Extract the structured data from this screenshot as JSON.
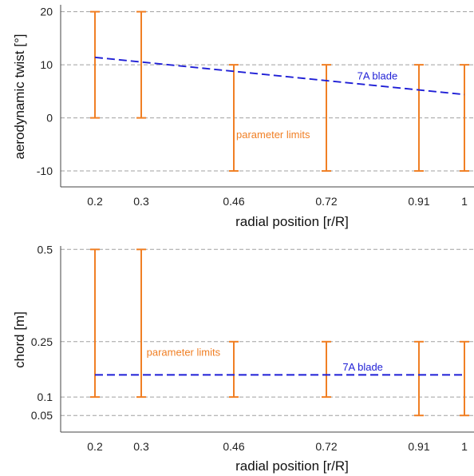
{
  "colors": {
    "limits": "#f07f24",
    "blade": "#1f1fd6",
    "grid": "#a0a0a0",
    "axis": "#444444"
  },
  "chart_data": [
    {
      "type": "errorbar+line",
      "name": "twist",
      "xlabel": "radial position [r/R]",
      "ylabel": "aerodynamic twist [°]",
      "xticks": [
        0.2,
        0.3,
        0.46,
        0.72,
        0.91,
        1
      ],
      "xtick_labels": [
        "0.2",
        "0.3",
        "0.46",
        "0.72",
        "0.91",
        "1"
      ],
      "yticks": [
        -10,
        0,
        10,
        20
      ],
      "ytick_labels": [
        "-10",
        "0",
        "10",
        "20"
      ],
      "ylim": [
        -13,
        21
      ],
      "grid": "horizontal-dashed",
      "limits_label": "parameter limits",
      "limits_label_at": {
        "x": 0.46,
        "y": -3.8
      },
      "limits": [
        {
          "x": 0.2,
          "low": 0,
          "high": 20
        },
        {
          "x": 0.3,
          "low": 0,
          "high": 20
        },
        {
          "x": 0.46,
          "low": -10,
          "high": 10
        },
        {
          "x": 0.72,
          "low": -10,
          "high": 10
        },
        {
          "x": 0.91,
          "low": -10,
          "high": 10
        },
        {
          "x": 1,
          "low": -10,
          "high": 10
        }
      ],
      "series": [
        {
          "name": "7A blade",
          "x": [
            0.2,
            1
          ],
          "y": [
            11.4,
            4.4
          ]
        }
      ],
      "series_label_at": {
        "x": 0.78,
        "y": 7.2
      }
    },
    {
      "type": "errorbar+line",
      "name": "chord",
      "xlabel": "radial position [r/R]",
      "ylabel": "chord [m]",
      "xticks": [
        0.2,
        0.3,
        0.46,
        0.72,
        0.91,
        1
      ],
      "xtick_labels": [
        "0.2",
        "0.3",
        "0.46",
        "0.72",
        "0.91",
        "1"
      ],
      "yticks": [
        0.05,
        0.1,
        0.25,
        0.5
      ],
      "ytick_labels": [
        "0.05",
        "0.1",
        "0.25",
        "0.5"
      ],
      "ylim": [
        0.005,
        0.505
      ],
      "grid": "horizontal-dashed",
      "limits_label": "parameter limits",
      "limits_label_at": {
        "x": 0.305,
        "y": 0.212
      },
      "limits": [
        {
          "x": 0.2,
          "low": 0.1,
          "high": 0.5
        },
        {
          "x": 0.3,
          "low": 0.1,
          "high": 0.5
        },
        {
          "x": 0.46,
          "low": 0.1,
          "high": 0.25
        },
        {
          "x": 0.72,
          "low": 0.1,
          "high": 0.25
        },
        {
          "x": 0.91,
          "low": 0.05,
          "high": 0.25
        },
        {
          "x": 1,
          "low": 0.05,
          "high": 0.25
        }
      ],
      "series": [
        {
          "name": "7A blade",
          "x": [
            0.2,
            1
          ],
          "y": [
            0.16,
            0.16
          ]
        }
      ],
      "series_label_at": {
        "x": 0.75,
        "y": 0.172
      }
    }
  ]
}
